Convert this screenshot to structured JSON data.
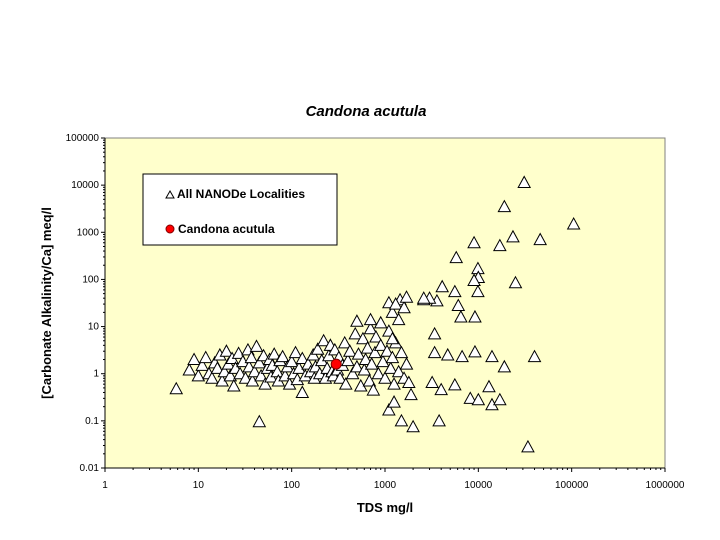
{
  "chart_data": {
    "type": "scatter",
    "title": "Candona acutula",
    "xlabel": "TDS  mg/l",
    "ylabel": "[Carbonate Alkalinity/Ca] meq/l",
    "xscale": "log",
    "yscale": "log",
    "xlim": [
      1,
      1000000
    ],
    "ylim": [
      0.01,
      100000
    ],
    "xticks": [
      "1",
      "10",
      "100",
      "1000",
      "10000",
      "100000",
      "1000000"
    ],
    "yticks": [
      "0.01",
      "0.1",
      "1",
      "10",
      "100",
      "1000",
      "10000",
      "100000"
    ],
    "grid": false,
    "legend_placement": "top-left",
    "background_color": "#FFFFCC",
    "series": [
      {
        "name": "All NANODe Localities",
        "marker": "triangle",
        "color": "#FFFFFF",
        "points": [
          [
            5.8,
            0.48
          ],
          [
            45,
            0.096
          ],
          [
            31000,
            11400
          ],
          [
            105000,
            1500
          ],
          [
            46000,
            700
          ],
          [
            19000,
            3500
          ],
          [
            23500,
            800
          ],
          [
            17000,
            520
          ],
          [
            9000,
            600
          ],
          [
            25000,
            85
          ],
          [
            9900,
            170
          ],
          [
            10000,
            110
          ],
          [
            9900,
            55
          ],
          [
            9000,
            95
          ],
          [
            5800,
            290
          ],
          [
            5600,
            55
          ],
          [
            6100,
            28
          ],
          [
            6500,
            16
          ],
          [
            9200,
            16
          ],
          [
            4100,
            70
          ],
          [
            3600,
            35
          ],
          [
            3000,
            40
          ],
          [
            2600,
            37
          ],
          [
            3400,
            7
          ],
          [
            3400,
            2.8
          ],
          [
            4700,
            2.5
          ],
          [
            6700,
            2.3
          ],
          [
            9200,
            2.9
          ],
          [
            14000,
            2.3
          ],
          [
            19000,
            1.4
          ],
          [
            40000,
            2.3
          ],
          [
            13000,
            0.53
          ],
          [
            3200,
            0.65
          ],
          [
            4000,
            0.46
          ],
          [
            5600,
            0.58
          ],
          [
            8200,
            0.3
          ],
          [
            10000,
            0.28
          ],
          [
            14000,
            0.22
          ],
          [
            17000,
            0.28
          ],
          [
            34000,
            0.028
          ],
          [
            3800,
            0.1
          ],
          [
            1500,
            0.1
          ],
          [
            2000,
            0.075
          ],
          [
            1100,
            0.17
          ],
          [
            1250,
            0.25
          ],
          [
            130,
            0.4
          ],
          [
            1900,
            0.36
          ],
          [
            8,
            1.2
          ],
          [
            9,
            2
          ],
          [
            10,
            0.9
          ],
          [
            11,
            1.5
          ],
          [
            12,
            2.2
          ],
          [
            13,
            1
          ],
          [
            14,
            0.8
          ],
          [
            15,
            1.7
          ],
          [
            16,
            1.3
          ],
          [
            17,
            2.5
          ],
          [
            18,
            0.7
          ],
          [
            19,
            1.1
          ],
          [
            20,
            3
          ],
          [
            21,
            1.6
          ],
          [
            22,
            0.9
          ],
          [
            23,
            2.1
          ],
          [
            24,
            0.55
          ],
          [
            25,
            1.3
          ],
          [
            27,
            2.7
          ],
          [
            28,
            1
          ],
          [
            30,
            1.8
          ],
          [
            32,
            0.8
          ],
          [
            34,
            3.2
          ],
          [
            35,
            1.4
          ],
          [
            37,
            2.2
          ],
          [
            38,
            0.7
          ],
          [
            40,
            1.1
          ],
          [
            42,
            3.8
          ],
          [
            45,
            1.7
          ],
          [
            47,
            0.9
          ],
          [
            50,
            2.4
          ],
          [
            52,
            0.6
          ],
          [
            55,
            1.3
          ],
          [
            58,
            2
          ],
          [
            60,
            0.85
          ],
          [
            62,
            1.5
          ],
          [
            65,
            2.6
          ],
          [
            70,
            1.1
          ],
          [
            72,
            0.7
          ],
          [
            75,
            1.9
          ],
          [
            80,
            2.3
          ],
          [
            85,
            0.9
          ],
          [
            90,
            1.4
          ],
          [
            95,
            0.6
          ],
          [
            100,
            1.8
          ],
          [
            105,
            1
          ],
          [
            110,
            2.8
          ],
          [
            115,
            0.75
          ],
          [
            120,
            1.3
          ],
          [
            130,
            2.1
          ],
          [
            140,
            0.9
          ],
          [
            150,
            1.6
          ],
          [
            160,
            1.1
          ],
          [
            170,
            2.5
          ],
          [
            175,
            0.8
          ],
          [
            180,
            1.4
          ],
          [
            190,
            3.3
          ],
          [
            200,
            1
          ],
          [
            210,
            1.9
          ],
          [
            220,
            5
          ],
          [
            230,
            0.8
          ],
          [
            240,
            1.3
          ],
          [
            250,
            2.4
          ],
          [
            260,
            4
          ],
          [
            270,
            1.1
          ],
          [
            280,
            0.9
          ],
          [
            290,
            3.2
          ],
          [
            310,
            1.2
          ],
          [
            320,
            2.2
          ],
          [
            330,
            0.8
          ],
          [
            350,
            1.5
          ],
          [
            370,
            4.5
          ],
          [
            380,
            0.6
          ],
          [
            400,
            1.9
          ],
          [
            420,
            3
          ],
          [
            450,
            1
          ],
          [
            480,
            7
          ],
          [
            500,
            1.4
          ],
          [
            520,
            2.6
          ],
          [
            550,
            0.55
          ],
          [
            580,
            5.5
          ],
          [
            600,
            1.2
          ],
          [
            620,
            2
          ],
          [
            650,
            3.5
          ],
          [
            680,
            0.7
          ],
          [
            700,
            9
          ],
          [
            720,
            1.6
          ],
          [
            750,
            0.45
          ],
          [
            780,
            2.8
          ],
          [
            800,
            6
          ],
          [
            850,
            1
          ],
          [
            900,
            4
          ],
          [
            950,
            1.8
          ],
          [
            1000,
            0.8
          ],
          [
            1050,
            3
          ],
          [
            1100,
            8
          ],
          [
            1150,
            1.3
          ],
          [
            1200,
            2.2
          ],
          [
            1250,
            0.6
          ],
          [
            1300,
            4.5
          ],
          [
            1400,
            1.1
          ],
          [
            1500,
            2.8
          ],
          [
            1600,
            0.8
          ],
          [
            1700,
            1.6
          ],
          [
            1800,
            0.65
          ],
          [
            1200,
            5.5
          ],
          [
            900,
            12
          ],
          [
            500,
            13
          ],
          [
            700,
            14
          ],
          [
            1100,
            32
          ],
          [
            1450,
            37
          ],
          [
            1200,
            20
          ],
          [
            1400,
            14
          ],
          [
            1300,
            30
          ],
          [
            1600,
            25
          ],
          [
            1700,
            42
          ],
          [
            2600,
            40
          ]
        ]
      },
      {
        "name": "Candona acutula",
        "marker": "circle",
        "color": "#FF0000",
        "points": [
          [
            300,
            1.6
          ]
        ]
      }
    ]
  }
}
